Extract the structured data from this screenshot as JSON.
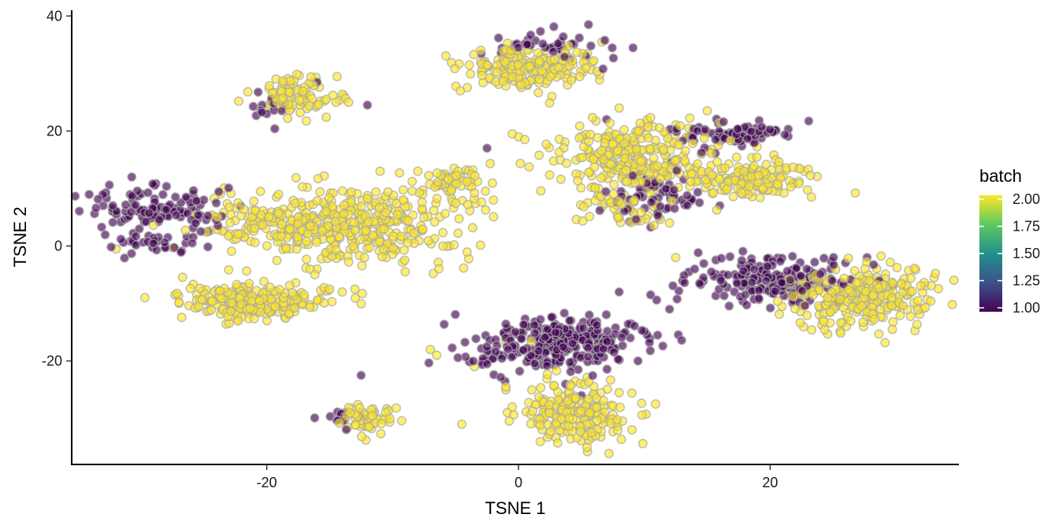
{
  "chart_data": {
    "type": "scatter",
    "title": "",
    "xlabel": "TSNE 1",
    "ylabel": "TSNE 2",
    "xlim": [
      -35.5,
      35
    ],
    "ylim": [
      -38,
      41
    ],
    "x_ticks": [
      -20,
      0,
      20
    ],
    "x_tick_labels": [
      "-20",
      "0",
      "20"
    ],
    "y_ticks": [
      -20,
      0,
      20,
      40
    ],
    "y_tick_labels": [
      "-20",
      "0",
      "20",
      "40"
    ],
    "grid": false,
    "legend": {
      "title": "batch",
      "placement": "right",
      "type": "colorbar",
      "range": [
        1.0,
        2.0
      ],
      "ticks": [
        2.0,
        1.75,
        1.5,
        1.25,
        1.0
      ],
      "tick_labels": [
        "2.00",
        "1.75",
        "1.50",
        "1.25",
        "1.00"
      ],
      "colors": [
        "#440154",
        "#3b528b",
        "#21918c",
        "#5ec962",
        "#fde725"
      ]
    },
    "marker": {
      "edge_color": "#a8a8a8",
      "alpha": 0.65
    },
    "series_note": "",
    "clusters": [
      {
        "batch": 1,
        "cx": -28.5,
        "cy": 6.5,
        "sx": 3.0,
        "sy": 2.0,
        "n": 110
      },
      {
        "batch": 1,
        "cx": -29.5,
        "cy": 0.5,
        "sx": 2.0,
        "sy": 1.0,
        "n": 35
      },
      {
        "batch": 1,
        "cx": -19.8,
        "cy": 24.0,
        "sx": 0.7,
        "sy": 1.0,
        "n": 12
      },
      {
        "batch": 2,
        "cx": -17.5,
        "cy": 26.0,
        "sx": 1.6,
        "sy": 1.8,
        "n": 90
      },
      {
        "batch": 2,
        "cx": -14.5,
        "cy": 3.5,
        "sx": 5.2,
        "sy": 3.2,
        "n": 460
      },
      {
        "batch": 2,
        "cx": -21.0,
        "cy": -9.5,
        "sx": 2.9,
        "sy": 1.5,
        "n": 230
      },
      {
        "batch": 2,
        "cx": -5.0,
        "cy": 10.5,
        "sx": 1.4,
        "sy": 1.4,
        "n": 60
      },
      {
        "batch": 2,
        "cx": -12.0,
        "cy": -30.0,
        "sx": 1.1,
        "sy": 1.3,
        "n": 55
      },
      {
        "batch": 1,
        "cx": -14.0,
        "cy": -29.5,
        "sx": 0.8,
        "sy": 1.0,
        "n": 15
      },
      {
        "batch": 1,
        "cx": 2.5,
        "cy": 35.0,
        "sx": 2.3,
        "sy": 1.3,
        "n": 45
      },
      {
        "batch": 2,
        "cx": 1.0,
        "cy": 31.0,
        "sx": 2.7,
        "sy": 1.8,
        "n": 200
      },
      {
        "batch": 2,
        "cx": 9.0,
        "cy": 15.5,
        "sx": 2.9,
        "sy": 3.1,
        "n": 280
      },
      {
        "batch": 2,
        "cx": 8.0,
        "cy": 6.5,
        "sx": 1.6,
        "sy": 1.5,
        "n": 45
      },
      {
        "batch": 1,
        "cx": 11.0,
        "cy": 9.0,
        "sx": 1.7,
        "sy": 2.3,
        "n": 65
      },
      {
        "batch": 1,
        "cx": 17.5,
        "cy": 19.5,
        "sx": 2.3,
        "sy": 1.2,
        "n": 80
      },
      {
        "batch": 2,
        "cx": 18.5,
        "cy": 12.0,
        "sx": 2.4,
        "sy": 1.8,
        "n": 150
      },
      {
        "batch": 1,
        "cx": 20.5,
        "cy": -6.0,
        "sx": 3.2,
        "sy": 2.1,
        "n": 200
      },
      {
        "batch": 2,
        "cx": 27.5,
        "cy": -9.0,
        "sx": 2.8,
        "sy": 2.7,
        "n": 270
      },
      {
        "batch": 1,
        "cx": 3.5,
        "cy": -17.0,
        "sx": 3.4,
        "sy": 2.3,
        "n": 280
      },
      {
        "batch": 2,
        "cx": 4.5,
        "cy": -29.0,
        "sx": 2.1,
        "sy": 2.5,
        "n": 210
      }
    ],
    "points_batch1": [
      [
        -1,
        -16
      ],
      [
        -2.5,
        -20.5
      ],
      [
        8,
        -8
      ],
      [
        10.5,
        -8.5
      ],
      [
        12,
        -11
      ],
      [
        -12.5,
        -22.5
      ],
      [
        -12,
        24.5
      ],
      [
        -2.5,
        17
      ],
      [
        -20,
        23
      ],
      [
        -18.8,
        23.5
      ],
      [
        -16,
        28.5
      ],
      [
        -33,
        7
      ],
      [
        -25,
        8
      ],
      [
        -24,
        4.5
      ],
      [
        16,
        7
      ],
      [
        7,
        22
      ],
      [
        14,
        -4
      ],
      [
        13,
        8
      ],
      [
        9.5,
        -20
      ],
      [
        5,
        -26
      ]
    ],
    "points_batch2": [
      [
        0,
        19
      ],
      [
        -0.5,
        19.5
      ],
      [
        0.5,
        18.5
      ],
      [
        -10.5,
        -2
      ],
      [
        -9,
        -4.5
      ],
      [
        -7,
        -18
      ],
      [
        -6.5,
        -19
      ],
      [
        -4.5,
        -31
      ],
      [
        -1,
        -25
      ],
      [
        -1,
        -24.5
      ],
      [
        15,
        23.5
      ],
      [
        12,
        4
      ],
      [
        8,
        5
      ],
      [
        -5.5,
        0
      ],
      [
        -6,
        0
      ],
      [
        -20.5,
        9.5
      ],
      [
        -16,
        -4
      ],
      [
        -15,
        -7.5
      ],
      [
        -14,
        -8
      ],
      [
        -13,
        -7.5
      ],
      [
        -11,
        13
      ],
      [
        -14.5,
        25
      ],
      [
        -13.5,
        25
      ],
      [
        -8,
        13
      ],
      [
        -1,
        -16.5
      ],
      [
        -3.5,
        -21
      ],
      [
        1,
        -16.5
      ],
      [
        4.5,
        -23.5
      ],
      [
        8,
        24
      ],
      [
        12.5,
        -2
      ],
      [
        8,
        -25.5
      ]
    ]
  }
}
